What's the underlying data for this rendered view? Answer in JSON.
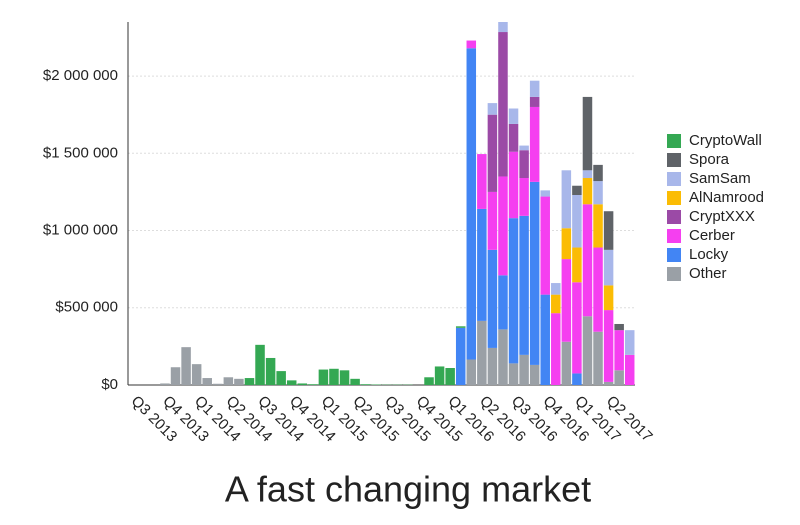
{
  "chart_data": {
    "type": "stacked-bar",
    "title": "A fast changing market",
    "categories": [
      "Q3 2013",
      null,
      null,
      "Q4 2013",
      null,
      null,
      "Q1 2014",
      null,
      null,
      "Q2 2014",
      null,
      null,
      "Q3 2014",
      null,
      null,
      "Q4 2014",
      null,
      null,
      "Q1 2015",
      null,
      null,
      "Q2 2015",
      null,
      null,
      "Q3 2015",
      null,
      null,
      "Q4 2015",
      null,
      null,
      "Q1 2016",
      null,
      null,
      "Q2 2016",
      null,
      null,
      "Q3 2016",
      null,
      null,
      "Q4 2016",
      null,
      null,
      "Q1 2017",
      null,
      null,
      "Q2 2017",
      null,
      null
    ],
    "series": [
      {
        "name": "CryptoWall",
        "color": "#34a853",
        "values": [
          0,
          0,
          0,
          0,
          0,
          0,
          0,
          0,
          0,
          0,
          0,
          45000,
          260000,
          175000,
          90000,
          30000,
          10000,
          5000,
          100000,
          105000,
          95000,
          40000,
          5000,
          3000,
          2000,
          2000,
          2000,
          0,
          50000,
          120000,
          110000,
          10000,
          0,
          0,
          0,
          0,
          0,
          0,
          0,
          0,
          0,
          0,
          0,
          0,
          0,
          0,
          0,
          0
        ]
      },
      {
        "name": "Spora",
        "color": "#5f6368",
        "values": [
          0,
          0,
          0,
          0,
          0,
          0,
          0,
          0,
          0,
          0,
          0,
          0,
          0,
          0,
          0,
          0,
          0,
          0,
          0,
          0,
          0,
          0,
          0,
          0,
          0,
          0,
          0,
          0,
          0,
          0,
          0,
          0,
          0,
          0,
          0,
          0,
          0,
          0,
          0,
          0,
          0,
          0,
          60000,
          475000,
          105000,
          250000,
          40000,
          0
        ]
      },
      {
        "name": "SamSam",
        "color": "#a8b7ea",
        "values": [
          0,
          0,
          0,
          0,
          0,
          0,
          0,
          0,
          0,
          0,
          0,
          0,
          0,
          0,
          0,
          0,
          0,
          0,
          0,
          0,
          0,
          0,
          0,
          0,
          0,
          0,
          0,
          0,
          0,
          0,
          0,
          0,
          0,
          0,
          75000,
          65000,
          100000,
          30000,
          105000,
          40000,
          75000,
          375000,
          340000,
          50000,
          150000,
          230000,
          0,
          160000
        ]
      },
      {
        "name": "AlNamrood",
        "color": "#fbbc04",
        "values": [
          0,
          0,
          0,
          0,
          0,
          0,
          0,
          0,
          0,
          0,
          0,
          0,
          0,
          0,
          0,
          0,
          0,
          0,
          0,
          0,
          0,
          0,
          0,
          0,
          0,
          0,
          0,
          0,
          0,
          0,
          0,
          0,
          0,
          0,
          0,
          0,
          0,
          0,
          0,
          0,
          120000,
          200000,
          225000,
          170000,
          280000,
          160000,
          0,
          0
        ]
      },
      {
        "name": "CryptXXX",
        "color": "#9b4aa6",
        "values": [
          0,
          0,
          0,
          0,
          0,
          0,
          0,
          0,
          0,
          0,
          0,
          0,
          0,
          0,
          0,
          0,
          0,
          0,
          0,
          0,
          0,
          0,
          0,
          0,
          0,
          0,
          0,
          0,
          0,
          0,
          0,
          0,
          0,
          0,
          500000,
          935000,
          180000,
          180000,
          65000,
          0,
          0,
          0,
          0,
          0,
          0,
          0,
          0,
          0
        ]
      },
      {
        "name": "Cerber",
        "color": "#f53ff0",
        "values": [
          0,
          0,
          0,
          0,
          0,
          0,
          0,
          0,
          0,
          0,
          0,
          0,
          0,
          0,
          0,
          0,
          0,
          0,
          0,
          0,
          0,
          0,
          0,
          0,
          0,
          0,
          0,
          0,
          0,
          0,
          0,
          0,
          50000,
          355000,
          375000,
          640000,
          430000,
          245000,
          485000,
          635000,
          465000,
          535000,
          590000,
          725000,
          545000,
          465000,
          260000,
          195000
        ]
      },
      {
        "name": "Locky",
        "color": "#4285f4",
        "values": [
          0,
          0,
          0,
          0,
          0,
          0,
          0,
          0,
          0,
          0,
          0,
          0,
          0,
          0,
          0,
          0,
          0,
          0,
          0,
          0,
          0,
          0,
          0,
          0,
          0,
          0,
          0,
          0,
          0,
          0,
          0,
          370000,
          2015000,
          725000,
          635000,
          350000,
          940000,
          900000,
          1185000,
          585000,
          0,
          0,
          75000,
          0,
          0,
          0,
          0,
          0
        ]
      },
      {
        "name": "Other",
        "color": "#9aa0a6",
        "values": [
          0,
          0,
          0,
          10000,
          115000,
          245000,
          135000,
          45000,
          8000,
          50000,
          40000,
          0,
          0,
          0,
          0,
          0,
          0,
          0,
          0,
          0,
          0,
          0,
          0,
          0,
          0,
          0,
          0,
          0,
          0,
          0,
          0,
          0,
          165000,
          415000,
          240000,
          360000,
          140000,
          195000,
          130000,
          0,
          0,
          280000,
          0,
          445000,
          345000,
          20000,
          95000,
          0
        ]
      }
    ],
    "ylim": [
      0,
      2350000
    ],
    "yticks": [
      {
        "value": 0,
        "label": "$0"
      },
      {
        "value": 500000,
        "label": "$500 000"
      },
      {
        "value": 1000000,
        "label": "$1 000 000"
      },
      {
        "value": 1500000,
        "label": "$1 500 000"
      },
      {
        "value": 2000000,
        "label": "$2 000 000"
      }
    ],
    "grid": true,
    "legend": "right"
  }
}
